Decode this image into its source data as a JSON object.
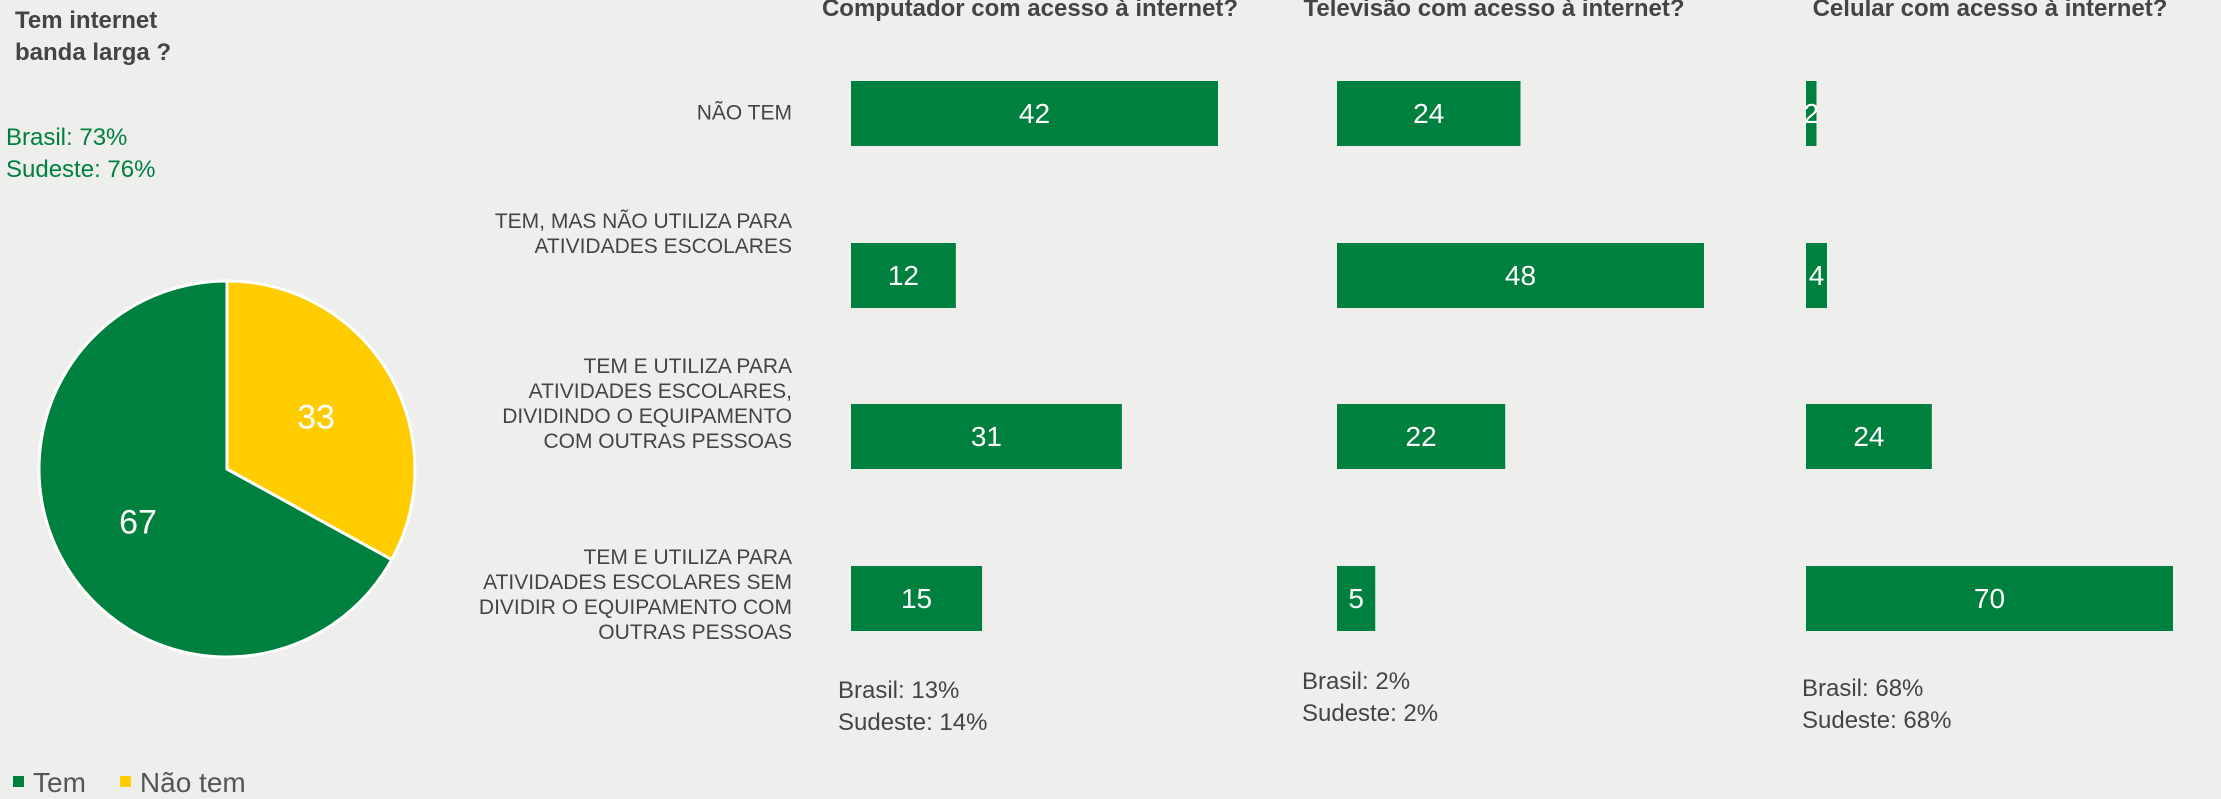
{
  "chart_data": [
    {
      "type": "pie",
      "title": [
        "Tem internet",
        "banda larga ?"
      ],
      "annotations": [
        "Brasil: 73%",
        "Sudeste: 76%"
      ],
      "categories": [
        "Tem",
        "Não tem"
      ],
      "values": [
        67,
        33
      ],
      "colors": [
        "#00803f",
        "#ffcc00"
      ]
    },
    {
      "type": "bar",
      "title": "Computador com acesso à internet?",
      "categories": [
        "NÃO TEM",
        "TEM, MAS NÃO UTILIZA PARA ATIVIDADES ESCOLARES",
        "TEM E UTILIZA PARA ATIVIDADES ESCOLARES, DIVIDINDO O EQUIPAMENTO COM OUTRAS PESSOAS",
        "TEM E UTILIZA PARA ATIVIDADES ESCOLARES SEM DIVIDIR O EQUIPAMENTO COM OUTRAS PESSOAS"
      ],
      "values": [
        42,
        12,
        31,
        15
      ],
      "color": "#00803f",
      "annotations": [
        "Brasil: 13%",
        "Sudeste: 14%"
      ]
    },
    {
      "type": "bar",
      "title": "Televisão com acesso à internet?",
      "values": [
        24,
        48,
        22,
        5
      ],
      "color": "#00803f",
      "annotations": [
        "Brasil: 2%",
        "Sudeste: 2%"
      ]
    },
    {
      "type": "bar",
      "title": "Celular com acesso à internet?",
      "values": [
        2,
        4,
        24,
        70
      ],
      "color": "#00803f",
      "annotations": [
        "Brasil: 68%",
        "Sudeste: 68%"
      ]
    }
  ]
}
